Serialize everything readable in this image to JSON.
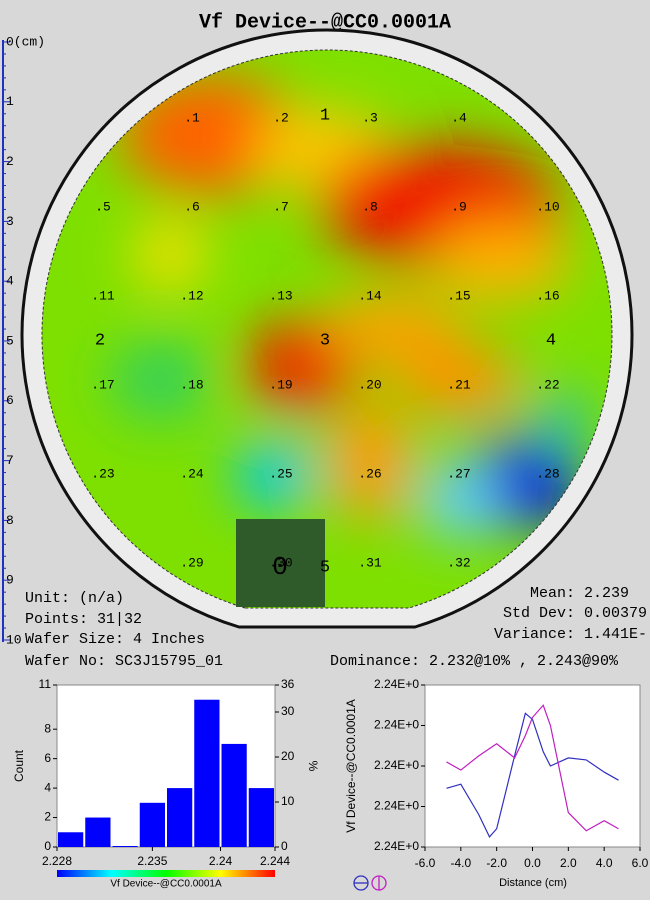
{
  "wafer_map": {
    "title": "Vf Device--@CC0.0001A",
    "ruler_ticks": [
      {
        "value": 0,
        "label": "0(cm)"
      },
      1,
      2,
      3,
      4,
      5,
      6,
      7,
      8,
      9,
      {
        "value": 10,
        "label": "10"
      }
    ],
    "sites": [
      ".1",
      ".2",
      ".3",
      ".4",
      ".5",
      ".6",
      ".7",
      ".8",
      ".9",
      ".10",
      ".11",
      ".12",
      ".13",
      ".14",
      ".15",
      ".16",
      ".17",
      ".18",
      ".19",
      ".20",
      ".21",
      ".22",
      ".23",
      ".24",
      ".25",
      ".26",
      ".27",
      ".28",
      ".29",
      ".30",
      ".31",
      ".32"
    ],
    "zones": [
      "1",
      "2",
      "3",
      "4",
      "5"
    ],
    "center_zone": "0",
    "unit": "Unit: (n/a)",
    "points": "Points: 31|32",
    "wafer_size": "Wafer Size: 4 Inches",
    "wafer_no": "Wafer No: SC3J15795_01",
    "mean": "Mean: 2.239",
    "std_dev": "Std Dev: 0.00379",
    "variance": "Variance: 1.441E-",
    "dominance": "Dominance: 2.232@10% , 2.243@90%"
  },
  "chart_data": [
    {
      "type": "histogram",
      "xlabel": "Vf Device--@CC0.0001A",
      "ylabel": "Count",
      "y2label": "%",
      "bins": [
        2.228,
        2.23,
        2.232,
        2.234,
        2.236,
        2.238,
        2.24,
        2.242,
        2.244
      ],
      "values": [
        1,
        2,
        0,
        3,
        4,
        10,
        7,
        4
      ],
      "color": "#0000ff",
      "xlim": [
        2.228,
        2.244
      ],
      "xticks": [
        2.228,
        2.235,
        2.24,
        2.244
      ],
      "ylim": [
        0,
        11
      ],
      "yticks": [
        0,
        2,
        4,
        6,
        8,
        11
      ],
      "y2lim": [
        0,
        36
      ],
      "y2ticks": [
        0,
        10,
        20,
        30,
        36
      ]
    },
    {
      "type": "line",
      "xlabel": "Distance (cm)",
      "ylabel": "Vf Device--@CC0.0001A",
      "xlim": [
        -6,
        6
      ],
      "xticks": [
        {
          "value": -6,
          "label": "-6.0"
        },
        {
          "value": -4,
          "label": "-4.0"
        },
        {
          "value": -2,
          "label": "-2.0"
        },
        {
          "value": 0,
          "label": "0.0"
        },
        {
          "value": 2,
          "label": "2.0"
        },
        {
          "value": 4,
          "label": "4.0"
        },
        {
          "value": 6,
          "label": "6.0"
        }
      ],
      "ylim": [
        2.236,
        2.244
      ],
      "yticks": [
        {
          "value": 2.236,
          "label": "2.24E+0"
        },
        {
          "value": 2.238,
          "label": "2.24E+0"
        },
        {
          "value": 2.24,
          "label": "2.24E+0"
        },
        {
          "value": 2.242,
          "label": "2.24E+0"
        },
        {
          "value": 2.244,
          "label": "2.24E+0"
        }
      ],
      "series": [
        {
          "color": "#3030c0",
          "x": [
            -4.8,
            -4,
            -3,
            -2.4,
            -2,
            -1,
            -0.4,
            0,
            0.6,
            1,
            2,
            3,
            4,
            4.8
          ],
          "values": [
            2.2389,
            2.2391,
            2.2376,
            2.2365,
            2.2369,
            2.2405,
            2.2426,
            2.2423,
            2.2407,
            2.24,
            2.2404,
            2.2403,
            2.2397,
            2.2393
          ]
        },
        {
          "color": "#c020c0",
          "x": [
            -4.8,
            -4,
            -3,
            -2,
            -1,
            -0.4,
            0,
            0.6,
            1,
            2,
            3,
            4,
            4.8
          ],
          "values": [
            2.2402,
            2.2398,
            2.2405,
            2.2411,
            2.2404,
            2.2415,
            2.2424,
            2.243,
            2.242,
            2.2377,
            2.2368,
            2.2373,
            2.2369
          ]
        }
      ]
    }
  ]
}
